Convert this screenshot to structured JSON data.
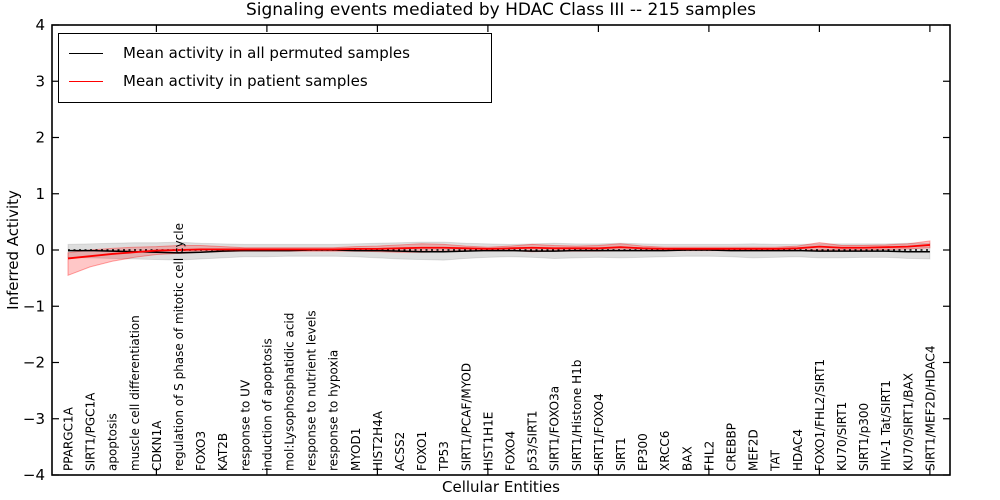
{
  "chart_data": {
    "type": "line",
    "title": "Signaling events mediated by HDAC Class III -- 215 samples",
    "xlabel": "Cellular Entities",
    "ylabel": "Inferred Activity",
    "ylim": [
      -4,
      4
    ],
    "yticks": [
      4,
      3,
      2,
      1,
      0,
      -1,
      -2,
      -3,
      -4
    ],
    "xtick_every": 5,
    "grid": false,
    "legend_position": "upper left",
    "zero_line": {
      "style": "dashed",
      "color": "#000000",
      "y": 0
    },
    "categories": [
      "PPARGC1A",
      "SIRT1/PGC1A",
      "apoptosis",
      "muscle cell differentiation",
      "CDKN1A",
      "regulation of S phase of mitotic cell cycle",
      "FOXO3",
      "KAT2B",
      "response to UV",
      "induction of apoptosis",
      "mol:Lysophosphatidic acid",
      "response to nutrient levels",
      "response to hypoxia",
      "MYOD1",
      "HIST2H4A",
      "ACSS2",
      "FOXO1",
      "TP53",
      "SIRT1/PCAF/MYOD",
      "HIST1H1E",
      "FOXO4",
      "p53/SIRT1",
      "SIRT1/FOXO3a",
      "SIRT1/Histone H1b",
      "SIRT1/FOXO4",
      "SIRT1",
      "EP300",
      "XRCC6",
      "BAX",
      "FHL2",
      "CREBBP",
      "MEF2D",
      "TAT",
      "HDAC4",
      "FOXO1/FHL2/SIRT1",
      "KU70/SIRT1",
      "SIRT1/p300",
      "HIV-1 Tat/SIRT1",
      "KU70/SIRT1/BAX",
      "SIRT1/MEF2D/HDAC4"
    ],
    "series": [
      {
        "name": "Mean activity in all permuted samples",
        "color": "#000000",
        "band_fill": "rgba(0,0,0,0.13)",
        "band_edge": "rgba(0,0,0,0.10)",
        "values": [
          -0.01,
          -0.01,
          -0.02,
          -0.03,
          -0.04,
          -0.05,
          -0.04,
          -0.02,
          -0.01,
          -0.01,
          -0.01,
          0,
          0,
          -0.01,
          -0.01,
          -0.02,
          -0.03,
          -0.03,
          -0.02,
          -0.01,
          -0.01,
          -0.02,
          -0.02,
          -0.01,
          -0.01,
          -0.01,
          -0.01,
          -0.01,
          0,
          0,
          -0.01,
          -0.01,
          -0.01,
          -0.01,
          -0.02,
          -0.02,
          -0.02,
          -0.02,
          -0.03,
          -0.03
        ],
        "band_upper": [
          0.1,
          0.11,
          0.12,
          0.13,
          0.13,
          0.14,
          0.12,
          0.11,
          0.1,
          0.1,
          0.1,
          0.1,
          0.1,
          0.11,
          0.12,
          0.13,
          0.14,
          0.14,
          0.12,
          0.11,
          0.1,
          0.11,
          0.12,
          0.11,
          0.11,
          0.12,
          0.11,
          0.1,
          0.1,
          0.1,
          0.1,
          0.11,
          0.1,
          0.1,
          0.11,
          0.11,
          0.11,
          0.11,
          0.12,
          0.12
        ],
        "band_lower": [
          -0.13,
          -0.14,
          -0.15,
          -0.16,
          -0.17,
          -0.18,
          -0.16,
          -0.14,
          -0.12,
          -0.12,
          -0.11,
          -0.11,
          -0.11,
          -0.12,
          -0.14,
          -0.16,
          -0.17,
          -0.18,
          -0.15,
          -0.13,
          -0.12,
          -0.13,
          -0.15,
          -0.14,
          -0.13,
          -0.14,
          -0.13,
          -0.12,
          -0.11,
          -0.11,
          -0.12,
          -0.14,
          -0.13,
          -0.12,
          -0.14,
          -0.14,
          -0.13,
          -0.13,
          -0.15,
          -0.16
        ]
      },
      {
        "name": "Mean activity in patient samples",
        "color": "#ff0000",
        "band_fill": "rgba(255,0,0,0.22)",
        "band_edge": "rgba(255,0,0,0.35)",
        "values": [
          -0.15,
          -0.11,
          -0.07,
          -0.04,
          -0.01,
          0.0,
          0.01,
          0.01,
          0.01,
          0.01,
          0.01,
          0.01,
          0.01,
          0.02,
          0.02,
          0.03,
          0.04,
          0.04,
          0.03,
          0.02,
          0.03,
          0.04,
          0.03,
          0.03,
          0.03,
          0.05,
          0.03,
          0.02,
          0.02,
          0.02,
          0.02,
          0.02,
          0.02,
          0.03,
          0.06,
          0.04,
          0.04,
          0.05,
          0.06,
          0.09
        ],
        "band_upper": [
          -0.05,
          0.0,
          0.03,
          0.05,
          0.06,
          0.08,
          0.08,
          0.06,
          0.04,
          0.04,
          0.04,
          0.04,
          0.04,
          0.06,
          0.07,
          0.09,
          0.11,
          0.1,
          0.07,
          0.05,
          0.07,
          0.1,
          0.08,
          0.07,
          0.08,
          0.11,
          0.07,
          0.05,
          0.05,
          0.05,
          0.05,
          0.05,
          0.05,
          0.07,
          0.13,
          0.08,
          0.08,
          0.09,
          0.11,
          0.16
        ],
        "band_lower": [
          -0.45,
          -0.3,
          -0.2,
          -0.13,
          -0.08,
          -0.06,
          -0.04,
          -0.03,
          -0.02,
          -0.02,
          -0.02,
          -0.02,
          -0.02,
          -0.02,
          -0.03,
          -0.04,
          -0.04,
          -0.03,
          -0.02,
          -0.01,
          -0.01,
          -0.03,
          -0.02,
          -0.02,
          -0.02,
          -0.01,
          -0.01,
          -0.01,
          -0.01,
          -0.01,
          -0.01,
          -0.01,
          -0.01,
          -0.01,
          0.0,
          0.0,
          0.0,
          0.01,
          0.02,
          0.04
        ]
      }
    ]
  }
}
